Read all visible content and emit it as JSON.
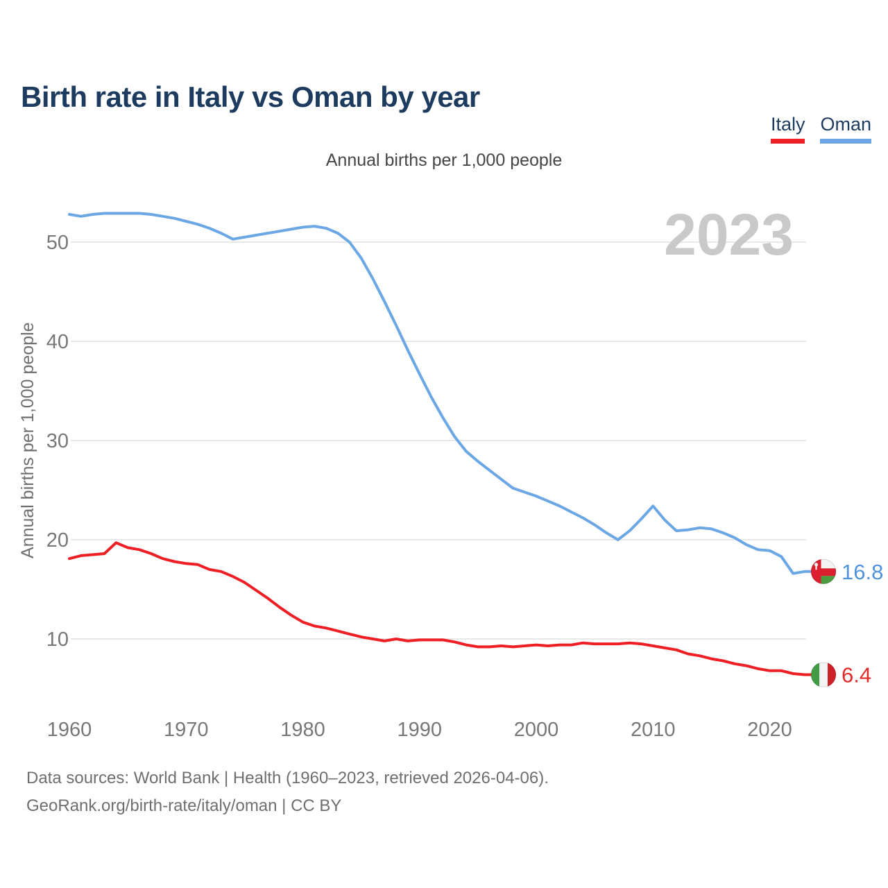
{
  "title": "Birth rate in Italy vs Oman by year",
  "subtitle": "Annual births per 1,000 people",
  "y_axis_label": "Annual births per 1,000 people",
  "watermark": "2023",
  "legend": {
    "items": [
      {
        "label": "Italy",
        "color": "#ed1f24"
      },
      {
        "label": "Oman",
        "color": "#6ba6e5"
      }
    ]
  },
  "footer": {
    "line1": "Data sources: World Bank | Health (1960–2023, retrieved 2026-04-06).",
    "line2": "GeoRank.org/birth-rate/italy/oman | CC BY"
  },
  "colors": {
    "title": "#1d3b5f",
    "subtitle": "#454545",
    "tick": "#777777",
    "grid": "#e8e8e8",
    "footer": "#6e6e6e",
    "watermark": "#c9c9c9",
    "italy_red": "#ed1f24",
    "oman_blue": "#6ba6e5"
  },
  "flags": {
    "italy": {
      "green": "#419c45",
      "white": "#f3f3f3",
      "red": "#cd212a"
    },
    "oman": {
      "red": "#db1f2e",
      "white": "#f3f3f3",
      "green": "#4a9c3f"
    }
  },
  "chart_data": {
    "type": "line",
    "title": "Birth rate in Italy vs Oman by year",
    "subtitle": "Annual births per 1,000 people",
    "xlabel": "",
    "ylabel": "Annual births per 1,000 people",
    "xlim": [
      1960,
      2023
    ],
    "ylim": [
      5,
      55
    ],
    "grid": "horizontal",
    "legend_position": "top-right",
    "xticks": [
      1960,
      1970,
      1980,
      1990,
      2000,
      2010,
      2020
    ],
    "yticks": [
      10,
      20,
      30,
      40,
      50
    ],
    "x": [
      1960,
      1961,
      1962,
      1963,
      1964,
      1965,
      1966,
      1967,
      1968,
      1969,
      1970,
      1971,
      1972,
      1973,
      1974,
      1975,
      1976,
      1977,
      1978,
      1979,
      1980,
      1981,
      1982,
      1983,
      1984,
      1985,
      1986,
      1987,
      1988,
      1989,
      1990,
      1991,
      1992,
      1993,
      1994,
      1995,
      1996,
      1997,
      1998,
      1999,
      2000,
      2001,
      2002,
      2003,
      2004,
      2005,
      2006,
      2007,
      2008,
      2009,
      2010,
      2011,
      2012,
      2013,
      2014,
      2015,
      2016,
      2017,
      2018,
      2019,
      2020,
      2021,
      2022,
      2023
    ],
    "series": [
      {
        "id": "italy",
        "name": "Italy",
        "color": "#ed1f24",
        "label_color": "#e12a2a",
        "values": [
          18.1,
          18.4,
          18.5,
          18.6,
          19.7,
          19.2,
          19.0,
          18.6,
          18.1,
          17.8,
          17.6,
          17.5,
          17.0,
          16.8,
          16.3,
          15.7,
          14.9,
          14.1,
          13.2,
          12.4,
          11.7,
          11.3,
          11.1,
          10.8,
          10.5,
          10.2,
          10.0,
          9.8,
          10.0,
          9.8,
          9.9,
          9.9,
          9.9,
          9.7,
          9.4,
          9.2,
          9.2,
          9.3,
          9.2,
          9.3,
          9.4,
          9.3,
          9.4,
          9.4,
          9.6,
          9.5,
          9.5,
          9.5,
          9.6,
          9.5,
          9.3,
          9.1,
          8.9,
          8.5,
          8.3,
          8.0,
          7.8,
          7.5,
          7.3,
          7.0,
          6.8,
          6.8,
          6.5,
          6.4
        ]
      },
      {
        "id": "oman",
        "name": "Oman",
        "color": "#6ba6e5",
        "label_color": "#4f93dd",
        "values": [
          52.8,
          52.6,
          52.8,
          52.9,
          52.9,
          52.9,
          52.9,
          52.8,
          52.6,
          52.4,
          52.1,
          51.8,
          51.4,
          50.9,
          50.3,
          50.5,
          50.7,
          50.9,
          51.1,
          51.3,
          51.5,
          51.6,
          51.4,
          50.9,
          50.0,
          48.4,
          46.3,
          44.0,
          41.6,
          39.1,
          36.7,
          34.4,
          32.3,
          30.4,
          28.9,
          27.9,
          27.0,
          26.1,
          25.2,
          24.8,
          24.4,
          23.9,
          23.4,
          22.8,
          22.2,
          21.5,
          20.7,
          20.0,
          20.9,
          22.1,
          23.4,
          22.0,
          20.9,
          21.0,
          21.2,
          21.1,
          20.7,
          20.2,
          19.5,
          19.0,
          18.9,
          18.3,
          16.6,
          16.8
        ]
      }
    ],
    "end_labels": {
      "italy": "6.4",
      "oman": "16.8"
    }
  }
}
